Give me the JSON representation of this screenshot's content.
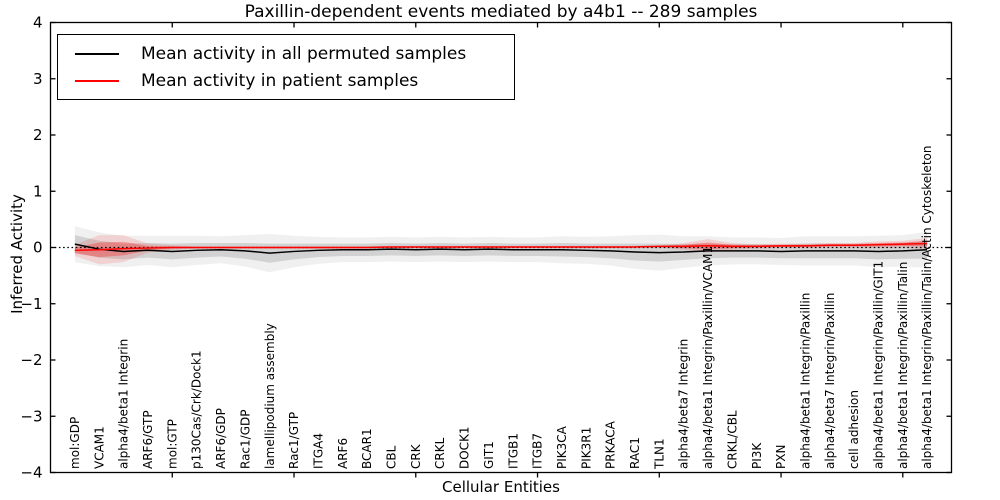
{
  "chart_data": {
    "type": "line",
    "title": "Paxillin-dependent events mediated by a4b1 -- 289 samples",
    "xlabel": "Cellular Entities",
    "ylabel": "Inferred Activity",
    "ylim": [
      -4,
      4
    ],
    "xlim": [
      0,
      37
    ],
    "yticks": [
      4,
      3,
      2,
      1,
      0,
      -1,
      -2,
      -3,
      -4
    ],
    "xticks": [
      5,
      10,
      15,
      20,
      25,
      30,
      35
    ],
    "grid": false,
    "legend_position": "upper left",
    "reference_line": {
      "y": 0,
      "style": "dotted",
      "color": "#000000"
    },
    "categories": [
      "mol:GDP",
      "VCAM1",
      "alpha4/beta1 Integrin",
      "ARF6/GTP",
      "mol:GTP",
      "p130Cas/Crk/Dock1",
      "ARF6/GDP",
      "Rac1/GDP",
      "lamellipodium assembly",
      "Rac1/GTP",
      "ITGA4",
      "ARF6",
      "BCAR1",
      "CBL",
      "CRK",
      "CRKL",
      "DOCK1",
      "GIT1",
      "ITGB1",
      "ITGB7",
      "PIK3CA",
      "PIK3R1",
      "PRKACA",
      "RAC1",
      "TLN1",
      "alpha4/beta7 Integrin",
      "alpha4/beta1 Integrin/Paxillin/VCAM1",
      "CRKL/CBL",
      "PI3K",
      "PXN",
      "alpha4/beta1 Integrin/Paxillin",
      "alpha4/beta7 Integrin/Paxillin",
      "cell adhesion",
      "alpha4/beta1 Integrin/Paxillin/GIT1",
      "alpha4/beta1 Integrin/Paxillin/Talin",
      "alpha4/beta1 Integrin/Paxillin/Talin/Actin Cytoskeleton"
    ],
    "series": [
      {
        "name": "Mean activity in all permuted samples",
        "color": "#000000",
        "values": [
          0.06,
          -0.03,
          -0.07,
          -0.05,
          -0.07,
          -0.05,
          -0.04,
          -0.06,
          -0.1,
          -0.07,
          -0.05,
          -0.04,
          -0.04,
          -0.03,
          -0.04,
          -0.03,
          -0.04,
          -0.03,
          -0.04,
          -0.04,
          -0.04,
          -0.05,
          -0.06,
          -0.08,
          -0.09,
          -0.08,
          -0.06,
          -0.06,
          -0.06,
          -0.07,
          -0.06,
          -0.06,
          -0.06,
          -0.07,
          -0.06,
          -0.04
        ],
        "band_std": [
          0.16,
          0.15,
          0.14,
          0.13,
          0.14,
          0.13,
          0.12,
          0.14,
          0.17,
          0.14,
          0.12,
          0.11,
          0.11,
          0.11,
          0.11,
          0.11,
          0.11,
          0.11,
          0.11,
          0.11,
          0.12,
          0.12,
          0.13,
          0.15,
          0.16,
          0.14,
          0.13,
          0.12,
          0.12,
          0.12,
          0.13,
          0.13,
          0.13,
          0.14,
          0.14,
          0.16
        ]
      },
      {
        "name": "Mean activity in patient samples",
        "color": "#ff0000",
        "values": [
          -0.05,
          -0.04,
          -0.02,
          -0.01,
          0.0,
          0.0,
          0.0,
          0.0,
          0.0,
          0.0,
          0.0,
          0.0,
          0.0,
          0.01,
          0.01,
          0.01,
          0.01,
          0.01,
          0.01,
          0.01,
          0.01,
          0.01,
          0.01,
          0.01,
          0.02,
          0.02,
          0.03,
          0.02,
          0.02,
          0.03,
          0.03,
          0.04,
          0.04,
          0.05,
          0.06,
          0.07
        ],
        "band_std": [
          0.05,
          0.13,
          0.12,
          0.04,
          0.02,
          0.01,
          0.01,
          0.01,
          0.01,
          0.01,
          0.01,
          0.01,
          0.01,
          0.01,
          0.01,
          0.01,
          0.01,
          0.01,
          0.01,
          0.01,
          0.01,
          0.01,
          0.01,
          0.01,
          0.01,
          0.03,
          0.06,
          0.03,
          0.02,
          0.02,
          0.02,
          0.02,
          0.02,
          0.03,
          0.03,
          0.05
        ]
      }
    ]
  },
  "legend": {
    "items": [
      {
        "label": "Mean activity in all permuted samples",
        "color": "#000000"
      },
      {
        "label": "Mean activity in patient samples",
        "color": "#ff0000"
      }
    ]
  },
  "colors": {
    "background": "#ffffff",
    "axis": "#000000",
    "permuted_line": "#000000",
    "patient_line": "#ff0000",
    "permuted_band_inner": "rgba(0,0,0,0.12)",
    "permuted_band_outer": "rgba(0,0,0,0.06)",
    "patient_band_inner": "rgba(255,0,0,0.28)",
    "patient_band_outer": "rgba(255,0,0,0.12)"
  }
}
